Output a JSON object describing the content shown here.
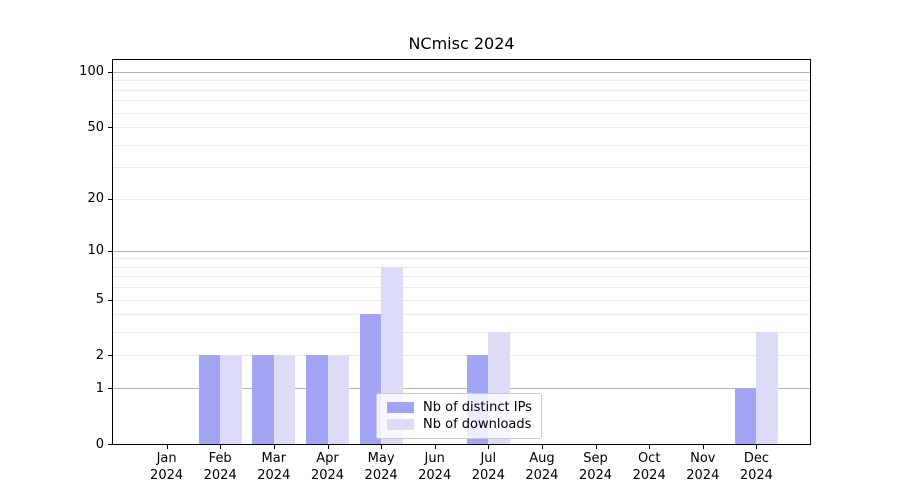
{
  "title": "NCmisc 2024",
  "chart_data": {
    "type": "bar",
    "title": "NCmisc 2024",
    "categories": [
      "Jan",
      "Feb",
      "Mar",
      "Apr",
      "May",
      "Jun",
      "Jul",
      "Aug",
      "Sep",
      "Oct",
      "Nov",
      "Dec"
    ],
    "category_year": "2024",
    "series": [
      {
        "name": "Nb of distinct IPs",
        "color": "#a4a4f4",
        "values": [
          0,
          2,
          2,
          2,
          4,
          0,
          2,
          0,
          0,
          0,
          0,
          1
        ]
      },
      {
        "name": "Nb of downloads",
        "color": "#dcdcf9",
        "values": [
          0,
          2,
          2,
          2,
          8,
          0,
          3,
          0,
          0,
          0,
          0,
          3
        ]
      }
    ],
    "y_axis": {
      "scale": "log1p",
      "tick_values": [
        0,
        1,
        2,
        5,
        10,
        20,
        50,
        100
      ],
      "major_grid_values": [
        1,
        10,
        100
      ],
      "minor_grid_values": [
        2,
        3,
        4,
        5,
        6,
        7,
        8,
        9,
        20,
        30,
        40,
        50,
        60,
        70,
        80,
        90
      ],
      "ymax": 116
    },
    "legend_position": "lower center",
    "grid": true
  },
  "colors": {
    "major_grid": "#b4b4b4",
    "minor_grid": "#ebebeb",
    "spine": "#000000",
    "text": "#000000"
  }
}
